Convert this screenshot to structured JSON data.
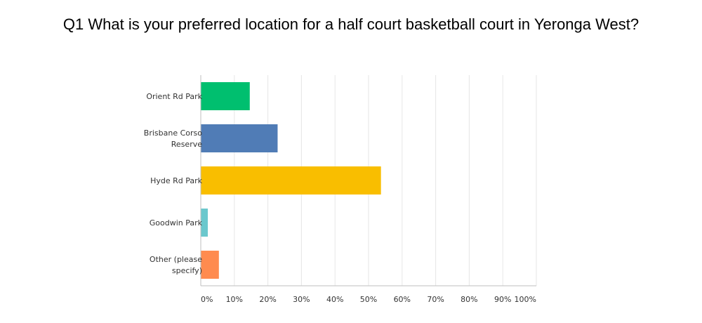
{
  "chart_data": {
    "type": "bar",
    "orientation": "horizontal",
    "title": "Q1 What is your preferred location for a half court basketball court in Yeronga West?",
    "categories": [
      [
        "Orient Rd Park"
      ],
      [
        "Brisbane Corso",
        "Reserve"
      ],
      [
        "Hyde Rd Park"
      ],
      [
        "Goodwin Park"
      ],
      [
        "Other (please",
        "specify)"
      ]
    ],
    "values": [
      14.6,
      22.9,
      53.7,
      2.1,
      5.4
    ],
    "colors": [
      "#00bf6f",
      "#507cb6",
      "#f9be00",
      "#6bc8cd",
      "#ff8b4f"
    ],
    "xlim": [
      0,
      100
    ],
    "xticks": [
      "0%",
      "10%",
      "20%",
      "30%",
      "40%",
      "50%",
      "60%",
      "70%",
      "80%",
      "90%",
      "100%"
    ],
    "grid": true
  }
}
